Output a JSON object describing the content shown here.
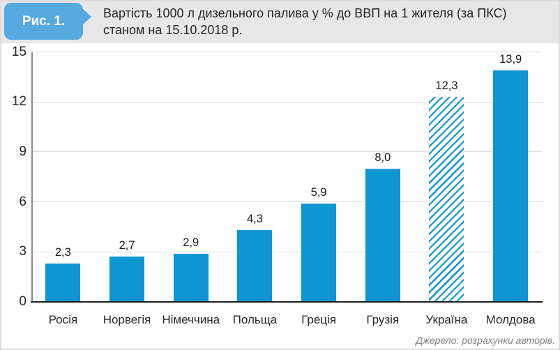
{
  "figure": {
    "badge_label": "Рис. 1.",
    "title_line1": "Вартість 1000 л дизельного палива у % до ВВП на 1 жителя (за ПКС)",
    "title_line2": "станом на 15.10.2018 р.",
    "source_note": "Джерело: розрахунки авторів."
  },
  "chart_data": {
    "type": "bar",
    "title": "Вартість 1000 л дизельного палива у % до ВВП на 1 жителя (за ПКС) станом на 15.10.2018 р.",
    "categories": [
      "Росія",
      "Норвегія",
      "Німеччина",
      "Польща",
      "Греція",
      "Грузія",
      "Україна",
      "Молдова"
    ],
    "category_keys": [
      "russia",
      "norway",
      "germany",
      "poland",
      "greece",
      "georgia",
      "ukraine",
      "moldova"
    ],
    "values": [
      2.3,
      2.7,
      2.9,
      4.3,
      5.9,
      8.0,
      12.3,
      13.9
    ],
    "value_labels": [
      "2,3",
      "2,7",
      "2,9",
      "4,3",
      "5,9",
      "8,0",
      "12,3",
      "13,9"
    ],
    "hatched_flags": [
      false,
      false,
      false,
      false,
      false,
      false,
      true,
      false
    ],
    "yticks": [
      0,
      3,
      6,
      9,
      12,
      15
    ],
    "ytick_labels": [
      "0",
      "3",
      "6",
      "9",
      "12",
      "15"
    ],
    "ylim": [
      0,
      15
    ],
    "xlabel": "",
    "ylabel": "",
    "grid": true,
    "legend": "none",
    "source": "Джерело: розрахунки авторів."
  },
  "colors": {
    "bar": "#0d96d2",
    "badge_bg": "#56aadf",
    "header_bg": "#e7e7e8",
    "gridline": "#d9d9d9",
    "y_axis": "#8a8a8a",
    "x_axis": "#1f1f1f",
    "text": "#262626",
    "source_text": "#7f7f7f"
  }
}
